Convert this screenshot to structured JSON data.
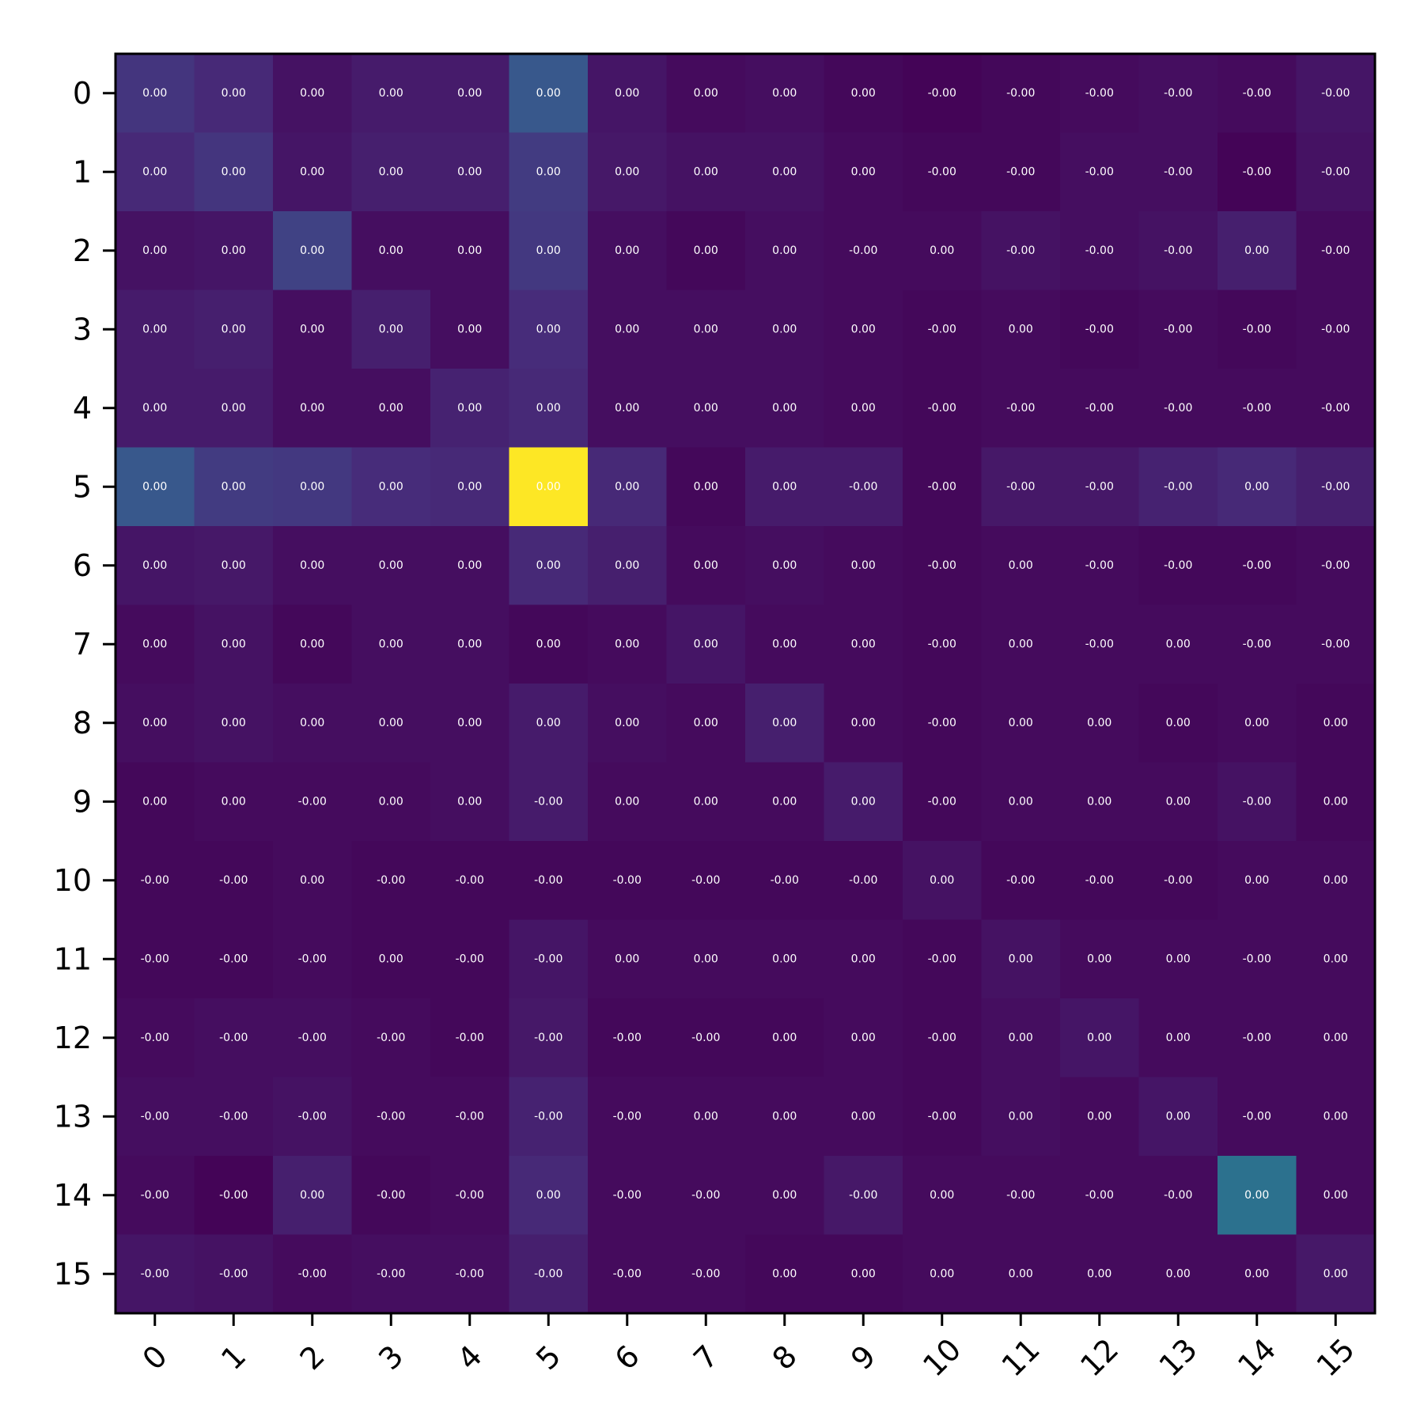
{
  "chart_data": {
    "type": "heatmap",
    "title": "",
    "xlabel": "",
    "ylabel": "",
    "x_categories": [
      "0",
      "1",
      "2",
      "3",
      "4",
      "5",
      "6",
      "7",
      "8",
      "9",
      "10",
      "11",
      "12",
      "13",
      "14",
      "15"
    ],
    "y_categories": [
      "0",
      "1",
      "2",
      "3",
      "4",
      "5",
      "6",
      "7",
      "8",
      "9",
      "10",
      "11",
      "12",
      "13",
      "14",
      "15"
    ],
    "colormap": "viridis",
    "color_scale_range": [
      0,
      1
    ],
    "intensity": [
      [
        0.16,
        0.12,
        0.05,
        0.08,
        0.08,
        0.28,
        0.06,
        0.03,
        0.04,
        0.02,
        0.01,
        0.02,
        0.03,
        0.04,
        0.03,
        0.06
      ],
      [
        0.12,
        0.16,
        0.06,
        0.09,
        0.09,
        0.18,
        0.07,
        0.05,
        0.05,
        0.03,
        0.02,
        0.02,
        0.04,
        0.04,
        0.01,
        0.05
      ],
      [
        0.05,
        0.06,
        0.2,
        0.04,
        0.04,
        0.17,
        0.04,
        0.02,
        0.04,
        0.03,
        0.03,
        0.05,
        0.04,
        0.05,
        0.09,
        0.03
      ],
      [
        0.08,
        0.09,
        0.04,
        0.09,
        0.04,
        0.13,
        0.04,
        0.04,
        0.04,
        0.03,
        0.02,
        0.03,
        0.02,
        0.03,
        0.02,
        0.03
      ],
      [
        0.08,
        0.08,
        0.04,
        0.04,
        0.1,
        0.12,
        0.04,
        0.04,
        0.04,
        0.03,
        0.02,
        0.03,
        0.03,
        0.03,
        0.03,
        0.03
      ],
      [
        0.28,
        0.18,
        0.17,
        0.13,
        0.12,
        1.0,
        0.12,
        0.02,
        0.08,
        0.08,
        0.02,
        0.07,
        0.07,
        0.1,
        0.12,
        0.09
      ],
      [
        0.06,
        0.07,
        0.04,
        0.04,
        0.04,
        0.12,
        0.09,
        0.03,
        0.04,
        0.03,
        0.02,
        0.03,
        0.03,
        0.02,
        0.02,
        0.03
      ],
      [
        0.03,
        0.05,
        0.02,
        0.04,
        0.04,
        0.02,
        0.03,
        0.06,
        0.03,
        0.03,
        0.02,
        0.03,
        0.03,
        0.03,
        0.03,
        0.03
      ],
      [
        0.04,
        0.05,
        0.04,
        0.04,
        0.04,
        0.08,
        0.04,
        0.03,
        0.09,
        0.03,
        0.02,
        0.03,
        0.03,
        0.02,
        0.03,
        0.02
      ],
      [
        0.02,
        0.03,
        0.03,
        0.03,
        0.04,
        0.08,
        0.03,
        0.03,
        0.03,
        0.08,
        0.02,
        0.03,
        0.03,
        0.03,
        0.05,
        0.02
      ],
      [
        0.02,
        0.02,
        0.03,
        0.02,
        0.02,
        0.02,
        0.02,
        0.02,
        0.02,
        0.02,
        0.05,
        0.02,
        0.02,
        0.02,
        0.03,
        0.03
      ],
      [
        0.02,
        0.02,
        0.03,
        0.02,
        0.02,
        0.06,
        0.03,
        0.03,
        0.03,
        0.03,
        0.02,
        0.05,
        0.03,
        0.03,
        0.03,
        0.03
      ],
      [
        0.03,
        0.04,
        0.04,
        0.03,
        0.02,
        0.07,
        0.02,
        0.02,
        0.02,
        0.03,
        0.02,
        0.04,
        0.06,
        0.03,
        0.03,
        0.03
      ],
      [
        0.04,
        0.04,
        0.05,
        0.03,
        0.03,
        0.1,
        0.03,
        0.03,
        0.03,
        0.03,
        0.02,
        0.04,
        0.03,
        0.06,
        0.03,
        0.03
      ],
      [
        0.03,
        0.01,
        0.09,
        0.02,
        0.03,
        0.12,
        0.03,
        0.03,
        0.03,
        0.07,
        0.03,
        0.03,
        0.03,
        0.03,
        0.38,
        0.03
      ],
      [
        0.06,
        0.05,
        0.03,
        0.04,
        0.04,
        0.09,
        0.03,
        0.03,
        0.02,
        0.02,
        0.03,
        0.03,
        0.03,
        0.03,
        0.03,
        0.07
      ]
    ],
    "cell_labels": [
      [
        "0.00",
        "0.00",
        "0.00",
        "0.00",
        "0.00",
        "0.00",
        "0.00",
        "0.00",
        "0.00",
        "0.00",
        "-0.00",
        "-0.00",
        "-0.00",
        "-0.00",
        "-0.00",
        "-0.00"
      ],
      [
        "0.00",
        "0.00",
        "0.00",
        "0.00",
        "0.00",
        "0.00",
        "0.00",
        "0.00",
        "0.00",
        "0.00",
        "-0.00",
        "-0.00",
        "-0.00",
        "-0.00",
        "-0.00",
        "-0.00"
      ],
      [
        "0.00",
        "0.00",
        "0.00",
        "0.00",
        "0.00",
        "0.00",
        "0.00",
        "0.00",
        "0.00",
        "-0.00",
        "0.00",
        "-0.00",
        "-0.00",
        "-0.00",
        "0.00",
        "-0.00"
      ],
      [
        "0.00",
        "0.00",
        "0.00",
        "0.00",
        "0.00",
        "0.00",
        "0.00",
        "0.00",
        "0.00",
        "0.00",
        "-0.00",
        "0.00",
        "-0.00",
        "-0.00",
        "-0.00",
        "-0.00"
      ],
      [
        "0.00",
        "0.00",
        "0.00",
        "0.00",
        "0.00",
        "0.00",
        "0.00",
        "0.00",
        "0.00",
        "0.00",
        "-0.00",
        "-0.00",
        "-0.00",
        "-0.00",
        "-0.00",
        "-0.00"
      ],
      [
        "0.00",
        "0.00",
        "0.00",
        "0.00",
        "0.00",
        "0.00",
        "0.00",
        "0.00",
        "0.00",
        "-0.00",
        "-0.00",
        "-0.00",
        "-0.00",
        "-0.00",
        "0.00",
        "-0.00"
      ],
      [
        "0.00",
        "0.00",
        "0.00",
        "0.00",
        "0.00",
        "0.00",
        "0.00",
        "0.00",
        "0.00",
        "0.00",
        "-0.00",
        "0.00",
        "-0.00",
        "-0.00",
        "-0.00",
        "-0.00"
      ],
      [
        "0.00",
        "0.00",
        "0.00",
        "0.00",
        "0.00",
        "0.00",
        "0.00",
        "0.00",
        "0.00",
        "0.00",
        "-0.00",
        "0.00",
        "-0.00",
        "0.00",
        "-0.00",
        "-0.00"
      ],
      [
        "0.00",
        "0.00",
        "0.00",
        "0.00",
        "0.00",
        "0.00",
        "0.00",
        "0.00",
        "0.00",
        "0.00",
        "-0.00",
        "0.00",
        "0.00",
        "0.00",
        "0.00",
        "0.00"
      ],
      [
        "0.00",
        "0.00",
        "-0.00",
        "0.00",
        "0.00",
        "-0.00",
        "0.00",
        "0.00",
        "0.00",
        "0.00",
        "-0.00",
        "0.00",
        "0.00",
        "0.00",
        "-0.00",
        "0.00"
      ],
      [
        "-0.00",
        "-0.00",
        "0.00",
        "-0.00",
        "-0.00",
        "-0.00",
        "-0.00",
        "-0.00",
        "-0.00",
        "-0.00",
        "0.00",
        "-0.00",
        "-0.00",
        "-0.00",
        "0.00",
        "0.00"
      ],
      [
        "-0.00",
        "-0.00",
        "-0.00",
        "0.00",
        "-0.00",
        "-0.00",
        "0.00",
        "0.00",
        "0.00",
        "0.00",
        "-0.00",
        "0.00",
        "0.00",
        "0.00",
        "-0.00",
        "0.00"
      ],
      [
        "-0.00",
        "-0.00",
        "-0.00",
        "-0.00",
        "-0.00",
        "-0.00",
        "-0.00",
        "-0.00",
        "0.00",
        "0.00",
        "-0.00",
        "0.00",
        "0.00",
        "0.00",
        "-0.00",
        "0.00"
      ],
      [
        "-0.00",
        "-0.00",
        "-0.00",
        "-0.00",
        "-0.00",
        "-0.00",
        "-0.00",
        "0.00",
        "0.00",
        "0.00",
        "-0.00",
        "0.00",
        "0.00",
        "0.00",
        "-0.00",
        "0.00"
      ],
      [
        "-0.00",
        "-0.00",
        "0.00",
        "-0.00",
        "-0.00",
        "0.00",
        "-0.00",
        "-0.00",
        "0.00",
        "-0.00",
        "0.00",
        "-0.00",
        "-0.00",
        "-0.00",
        "0.00",
        "0.00"
      ],
      [
        "-0.00",
        "-0.00",
        "-0.00",
        "-0.00",
        "-0.00",
        "-0.00",
        "-0.00",
        "-0.00",
        "0.00",
        "0.00",
        "0.00",
        "0.00",
        "0.00",
        "0.00",
        "0.00",
        "0.00"
      ]
    ],
    "colorbar": false,
    "grid": false,
    "legend": "none"
  }
}
